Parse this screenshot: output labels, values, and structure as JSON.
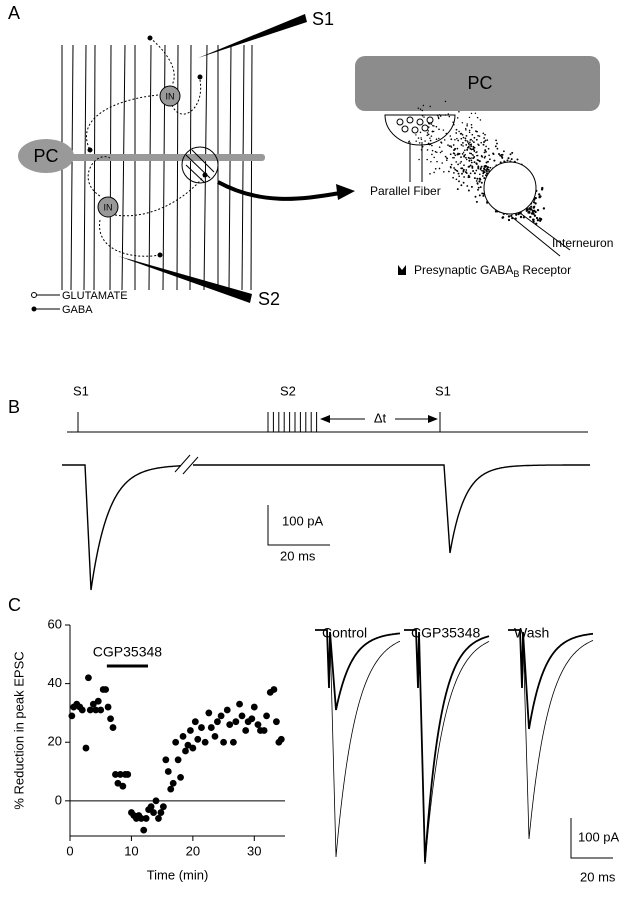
{
  "panels": {
    "a": {
      "label": "A",
      "s1": "S1",
      "s2": "S2",
      "pc": "PC",
      "in_1": "IN",
      "in_2": "IN",
      "legend": [
        "GLUTAMATE",
        "GABA"
      ],
      "inset": {
        "pc": "PC",
        "parallel_fiber": "Parallel Fiber",
        "interneuron": "Interneuron",
        "receptor": "Presynaptic GABA",
        "receptor_sub": "B",
        "receptor_end": "Receptor"
      }
    },
    "b": {
      "label": "B",
      "s1_first": "S1",
      "s2": "S2",
      "delta_t": "Δt",
      "s1_second": "S1",
      "scale_y": "100  pA",
      "scale_x": "20  ms"
    },
    "c": {
      "label": "C",
      "traces": [
        "Control",
        "CGP35348",
        "Wash"
      ],
      "scale_y": "100  pA",
      "scale_x": "20  ms"
    }
  },
  "chart_data": {
    "type": "scatter",
    "y_label": "% Reduction in peak EPSC",
    "x_label": "Time  (min)",
    "xlim": [
      0,
      35
    ],
    "xticks": [
      0,
      10,
      20,
      30
    ],
    "ylim": [
      -12,
      60
    ],
    "yticks": [
      0,
      20,
      40,
      60
    ],
    "hline": 0,
    "annotation": {
      "text": "CGP35348",
      "start": 6,
      "end": 12.7,
      "y": 46
    },
    "x": [
      0.3,
      0.6,
      1.1,
      1.6,
      2.0,
      2.6,
      3.0,
      3.3,
      3.8,
      4.2,
      4.6,
      5.0,
      5.4,
      5.8,
      6.2,
      6.6,
      7.0,
      7.4,
      7.8,
      8.2,
      8.6,
      9.0,
      9.4,
      10.0,
      10.4,
      10.8,
      11.2,
      11.6,
      12.0,
      12.4,
      12.8,
      13.2,
      13.6,
      14.0,
      14.4,
      14.8,
      15.2,
      15.6,
      16.0,
      16.4,
      16.8,
      17.2,
      17.6,
      18.0,
      18.4,
      18.8,
      19.2,
      19.6,
      20.0,
      20.4,
      20.8,
      21.4,
      22.0,
      22.6,
      23.0,
      23.6,
      24.0,
      24.6,
      25.0,
      25.6,
      26.0,
      26.6,
      27.0,
      27.6,
      28.0,
      28.6,
      29.0,
      29.6,
      30.0,
      30.6,
      31.0,
      31.6,
      32.0,
      32.6,
      33.2,
      33.6,
      34.0,
      34.4
    ],
    "series": [
      {
        "color": "#000000",
        "values": [
          29,
          32,
          33,
          32,
          31,
          18,
          42,
          31,
          33,
          31,
          34,
          31,
          38,
          38,
          32,
          28,
          25,
          9,
          6,
          9,
          5,
          9,
          9,
          -4,
          -5,
          -6,
          -5,
          -6,
          -10,
          -6,
          -3,
          -2,
          -4,
          0,
          -6,
          -4,
          -2,
          14,
          10,
          4,
          6,
          20,
          14,
          8,
          22,
          17,
          19,
          24,
          18,
          27,
          21,
          25,
          20,
          30,
          25,
          22,
          27,
          29,
          20,
          31,
          26,
          20,
          27,
          33,
          29,
          24,
          27,
          28,
          32,
          26,
          24,
          24,
          29,
          37,
          38,
          27,
          20,
          21
        ]
      }
    ]
  }
}
